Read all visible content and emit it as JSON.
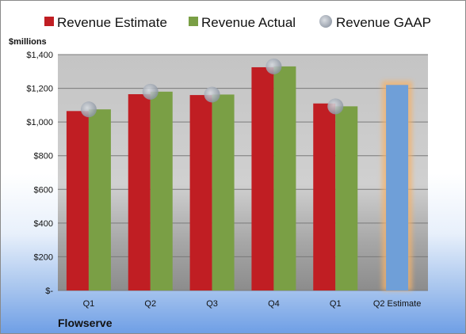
{
  "chart_data": {
    "type": "bar",
    "unit_label": "$millions",
    "company": "Flowserve",
    "categories": [
      "Q1",
      "Q2",
      "Q3",
      "Q4",
      "Q1",
      "Q2 Estimate"
    ],
    "series": [
      {
        "name": "Revenue Estimate",
        "color": "#c01e23",
        "values": [
          1065,
          1165,
          1160,
          1325,
          1110,
          null
        ]
      },
      {
        "name": "Revenue Actual",
        "color": "#7a9f45",
        "values": [
          1075,
          1180,
          1163,
          1330,
          1093,
          null
        ]
      },
      {
        "name": "Revenue GAAP",
        "color": "#9aa3b0",
        "marker": "circle",
        "values": [
          1075,
          1180,
          1163,
          1330,
          1093,
          null
        ]
      }
    ],
    "estimate_bar": {
      "category": "Q2 Estimate",
      "value": 1220,
      "color": "#6f9fd8",
      "glow": "#f4b26b"
    },
    "y_ticks": [
      "$-",
      "$200",
      "$400",
      "$600",
      "$800",
      "$1,000",
      "$1,200",
      "$1,400"
    ],
    "ylim": [
      0,
      1400
    ],
    "grid": true,
    "legend_position": "top"
  }
}
